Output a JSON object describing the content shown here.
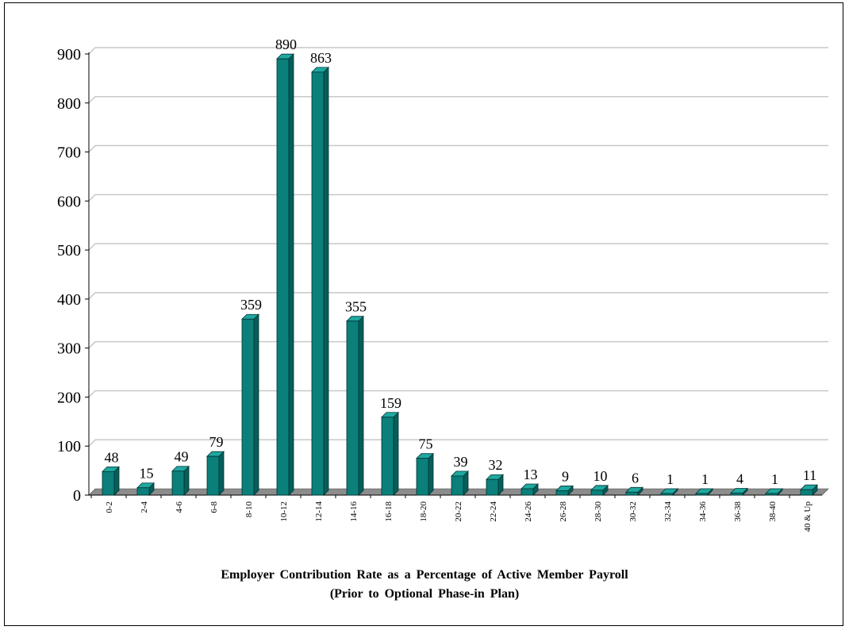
{
  "chart_data": {
    "type": "bar",
    "categories": [
      "0-2",
      "2-4",
      "4-6",
      "6-8",
      "8-10",
      "10-12",
      "12-14",
      "14-16",
      "16-18",
      "18-20",
      "20-22",
      "22-24",
      "24-26",
      "26-28",
      "28-30",
      "30-32",
      "32-34",
      "34-36",
      "36-38",
      "38-40",
      "40 & Up"
    ],
    "values": [
      48,
      15,
      49,
      79,
      359,
      890,
      863,
      355,
      159,
      75,
      39,
      32,
      13,
      9,
      10,
      6,
      1,
      1,
      4,
      1,
      11
    ],
    "yticks": [
      "0",
      "100",
      "200",
      "300",
      "400",
      "500",
      "600",
      "700",
      "800",
      "900"
    ],
    "ylim": [
      0,
      900
    ],
    "grid": true,
    "title": "Employer  Contribution  Rate as a Percentage of Active Member  Payroll",
    "subtitle": "(Prior to Optional Phase-in Plan)",
    "colors": {
      "bar_front": "#0b7f7a",
      "bar_side": "#075e5a",
      "bar_top": "#1fa8a0",
      "floor": "#8c8c8c",
      "grid": "#c8c8c8"
    }
  }
}
